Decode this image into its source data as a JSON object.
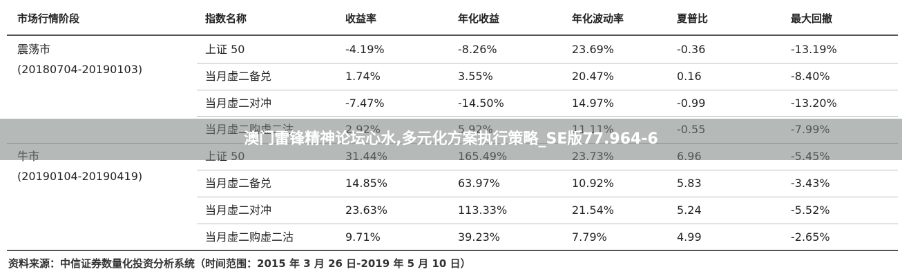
{
  "table": {
    "header": [
      "市场行情阶段",
      "指数名称",
      "收益率",
      "年化收益",
      "年化波动率",
      "夏普比",
      "最大回撤"
    ],
    "groups": [
      {
        "label": "震荡市",
        "period": "(20180704-20190103)",
        "rows": [
          [
            "上证 50",
            "-4.19%",
            "-8.26%",
            "23.69%",
            "-0.36",
            "-13.19%"
          ],
          [
            "当月虚二备兑",
            "1.74%",
            "3.55%",
            "20.47%",
            "0.16",
            "-8.40%"
          ],
          [
            "当月虚二对冲",
            "-7.47%",
            "-14.50%",
            "14.97%",
            "-0.99",
            "-13.20%"
          ],
          [
            "当月虚二购虚二沽",
            "2.92%",
            "5.92%",
            "11.11%",
            "-0.55",
            "-7.99%"
          ]
        ]
      },
      {
        "label": "牛市",
        "period": "(20190104-20190419)",
        "rows": [
          [
            "上证 50",
            "31.44%",
            "165.49%",
            "23.73%",
            "6.96",
            "-5.45%"
          ],
          [
            "当月虚二备兑",
            "14.85%",
            "63.97%",
            "10.92%",
            "5.83",
            "-3.43%"
          ],
          [
            "当月虚二对冲",
            "23.63%",
            "113.33%",
            "21.54%",
            "5.24",
            "-5.52%"
          ],
          [
            "当月虚二购虚二沽",
            "9.71%",
            "39.23%",
            "7.79%",
            "4.99",
            "-2.65%"
          ]
        ]
      }
    ]
  },
  "banner": "澳门雷锋精神论坛心水,多元化方案执行策略_SE版77.964-6",
  "source": "资料来源：中信证券数量化投资分析系统（时间范围：2015 年 3 月 26 日-2019 年 5 月 10 日）"
}
